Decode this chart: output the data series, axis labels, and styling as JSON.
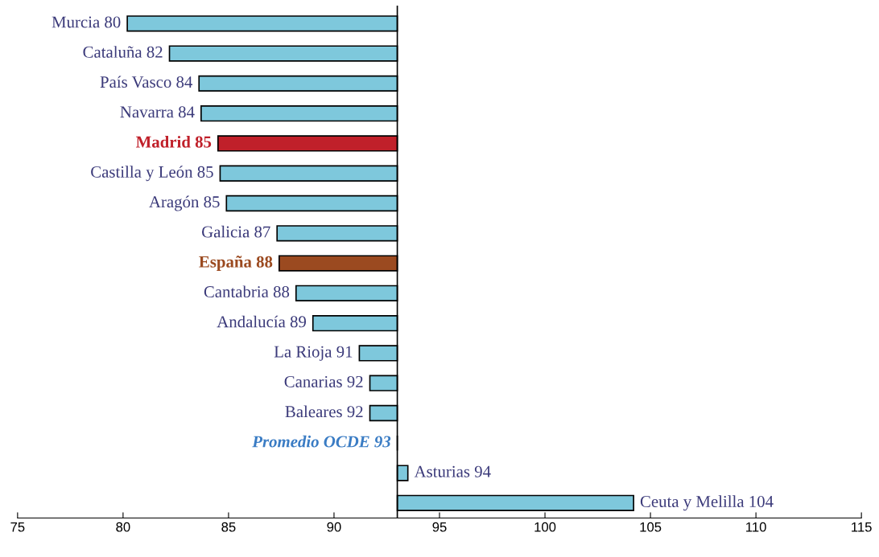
{
  "chart_data": {
    "type": "bar",
    "orientation": "horizontal",
    "categories": [
      "Murcia 80",
      "Cataluña 82",
      "País Vasco 84",
      "Navarra 84",
      "Madrid 85",
      "Castilla y León 85",
      "Aragón 85",
      "Galicia 87",
      "España 88",
      "Cantabria 88",
      "Andalucía 89",
      "La Rioja 91",
      "Canarias 92",
      "Baleares 92",
      null,
      "Asturias 94",
      "Ceuta y Melilla 104"
    ],
    "base": [
      93,
      93,
      93,
      93,
      93,
      93,
      93,
      93,
      93,
      93,
      93,
      93,
      93,
      93,
      93,
      93,
      93
    ],
    "values": [
      -12.8,
      -10.8,
      -9.4,
      -9.3,
      -8.5,
      -8.4,
      -8.1,
      -5.7,
      -5.6,
      -4.8,
      -4.0,
      -1.8,
      -1.3,
      -1.3,
      0,
      0.5,
      11.2
    ],
    "colors": [
      "#7ec8dc",
      "#7ec8dc",
      "#7ec8dc",
      "#7ec8dc",
      "#c0202a",
      "#7ec8dc",
      "#7ec8dc",
      "#7ec8dc",
      "#9b4a20",
      "#7ec8dc",
      "#7ec8dc",
      "#7ec8dc",
      "#7ec8dc",
      "#7ec8dc",
      "#000000",
      "#7ec8dc",
      "#7ec8dc"
    ],
    "xlim": [
      75,
      115
    ],
    "xticks": [
      75,
      80,
      85,
      90,
      95,
      100,
      105,
      110,
      115
    ],
    "ref_lines": [
      {
        "axis": "x",
        "value": 93,
        "color": "#000000"
      }
    ],
    "annotations": [
      {
        "text": "Promedio OCDE 93",
        "x": 93
      }
    ],
    "grid": false,
    "legend": false
  }
}
